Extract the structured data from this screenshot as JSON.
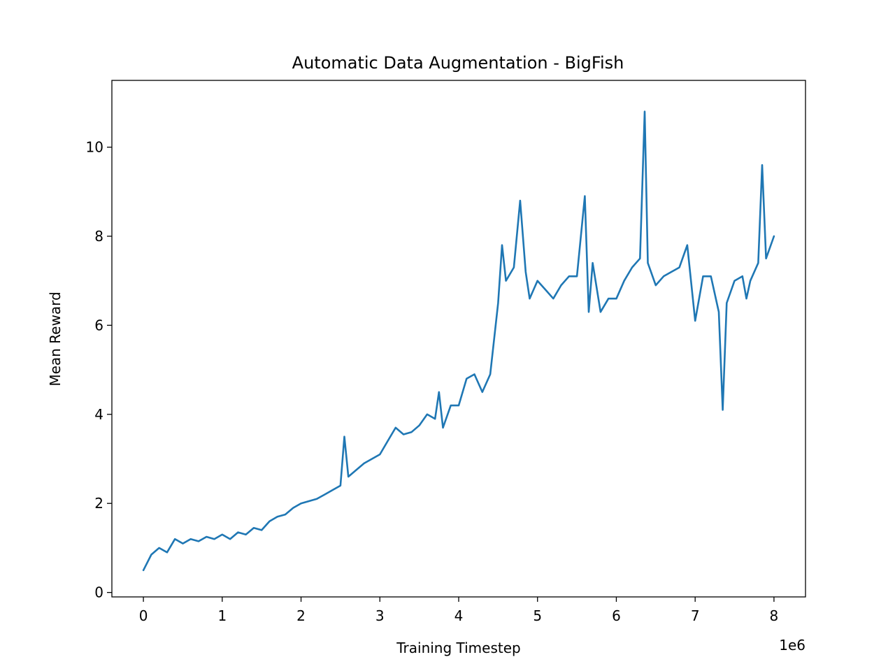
{
  "chart_data": {
    "type": "line",
    "title": "Automatic Data Augmentation - BigFish",
    "xlabel": "Training Timestep",
    "ylabel": "Mean Reward",
    "x_offset_label": "1e6",
    "x_tick_values": [
      0,
      1,
      2,
      3,
      4,
      5,
      6,
      7,
      8
    ],
    "x_tick_labels": [
      "0",
      "1",
      "2",
      "3",
      "4",
      "5",
      "6",
      "7",
      "8"
    ],
    "y_tick_values": [
      0,
      2,
      4,
      6,
      8,
      10
    ],
    "y_tick_labels": [
      "0",
      "2",
      "4",
      "6",
      "8",
      "10"
    ],
    "xlim": [
      -0.4,
      8.4
    ],
    "ylim": [
      -0.1,
      11.5
    ],
    "grid": false,
    "legend": "none",
    "color": "#1f77b4",
    "series": [
      {
        "x": [
          0.0,
          0.1,
          0.2,
          0.3,
          0.4,
          0.5,
          0.6,
          0.7,
          0.8,
          0.9,
          1.0,
          1.1,
          1.2,
          1.3,
          1.4,
          1.5,
          1.6,
          1.7,
          1.8,
          1.9,
          2.0,
          2.1,
          2.2,
          2.3,
          2.4,
          2.5,
          2.55,
          2.6,
          2.7,
          2.8,
          2.9,
          3.0,
          3.1,
          3.2,
          3.3,
          3.4,
          3.5,
          3.6,
          3.7,
          3.75,
          3.8,
          3.9,
          4.0,
          4.1,
          4.2,
          4.3,
          4.4,
          4.5,
          4.55,
          4.6,
          4.7,
          4.78,
          4.85,
          4.9,
          5.0,
          5.1,
          5.2,
          5.3,
          5.4,
          5.5,
          5.6,
          5.65,
          5.7,
          5.8,
          5.9,
          6.0,
          6.1,
          6.2,
          6.3,
          6.36,
          6.4,
          6.5,
          6.6,
          6.7,
          6.8,
          6.9,
          7.0,
          7.1,
          7.2,
          7.3,
          7.35,
          7.4,
          7.5,
          7.6,
          7.65,
          7.7,
          7.8,
          7.85,
          7.9,
          8.0
        ],
        "y": [
          0.5,
          0.85,
          1.0,
          0.9,
          1.2,
          1.1,
          1.2,
          1.15,
          1.25,
          1.2,
          1.3,
          1.2,
          1.35,
          1.3,
          1.45,
          1.4,
          1.6,
          1.7,
          1.75,
          1.9,
          2.0,
          2.05,
          2.1,
          2.2,
          2.3,
          2.4,
          3.5,
          2.6,
          2.75,
          2.9,
          3.0,
          3.1,
          3.4,
          3.7,
          3.55,
          3.6,
          3.75,
          4.0,
          3.9,
          4.5,
          3.7,
          4.2,
          4.2,
          4.8,
          4.9,
          4.5,
          4.9,
          6.5,
          7.8,
          7.0,
          7.3,
          8.8,
          7.2,
          6.6,
          7.0,
          6.8,
          6.6,
          6.9,
          7.1,
          7.1,
          8.9,
          6.3,
          7.4,
          6.3,
          6.6,
          6.6,
          7.0,
          7.3,
          7.5,
          10.8,
          7.4,
          6.9,
          7.1,
          7.2,
          7.3,
          7.8,
          6.1,
          7.1,
          7.1,
          6.3,
          4.1,
          6.5,
          7.0,
          7.1,
          6.6,
          7.0,
          7.4,
          9.6,
          7.5,
          8.0
        ]
      }
    ]
  }
}
